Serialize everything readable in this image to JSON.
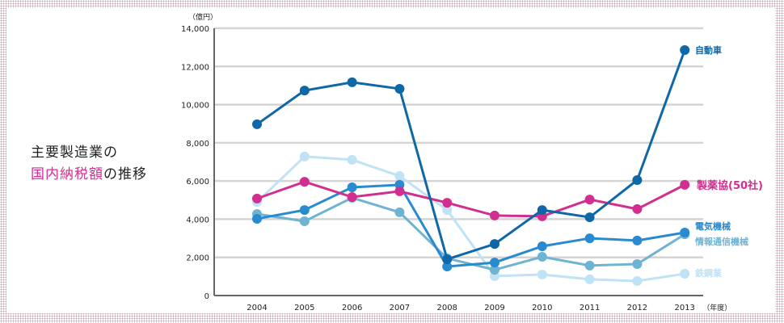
{
  "title": {
    "line1": "主要製造業の",
    "line2_highlight": "国内納税額",
    "line2_rest": "の推移"
  },
  "chart_data": {
    "type": "line",
    "title": "主要製造業の国内納税額の推移",
    "ylabel": "（億円）",
    "xlabel": "（年度）",
    "ylim": [
      0,
      14000
    ],
    "yticks": [
      0,
      2000,
      4000,
      6000,
      8000,
      10000,
      12000,
      14000
    ],
    "ytick_labels": [
      "0",
      "2,000",
      "4,000",
      "6,000",
      "8,000",
      "10,000",
      "12,000",
      "14,000"
    ],
    "grid": true,
    "legend": "right-end labels",
    "x": [
      "2004",
      "2005",
      "2006",
      "2007",
      "2008",
      "2009",
      "2010",
      "2011",
      "2012",
      "2013"
    ],
    "series": [
      {
        "name": "鉄鋼業",
        "color": "#bfe2f4",
        "values": [
          4900,
          7280,
          7110,
          6260,
          4480,
          1020,
          1100,
          850,
          760,
          1140
        ]
      },
      {
        "name": "情報通信機械",
        "color": "#6fb3d3",
        "values": [
          4270,
          3890,
          5120,
          4360,
          1950,
          1350,
          2030,
          1570,
          1650,
          3210
        ]
      },
      {
        "name": "電気機械",
        "color": "#2a8ad0",
        "values": [
          4020,
          4480,
          5670,
          5800,
          1520,
          1730,
          2580,
          3000,
          2880,
          3300
        ]
      },
      {
        "name": "製薬協(50社)",
        "color": "#d12f8f",
        "values": [
          5080,
          5960,
          5160,
          5460,
          4860,
          4190,
          4150,
          5030,
          4530,
          5800
        ]
      },
      {
        "name": "自動車",
        "color": "#0e68a8",
        "values": [
          8970,
          10740,
          11170,
          10830,
          1900,
          2700,
          4480,
          4100,
          6050,
          12860
        ]
      }
    ]
  }
}
